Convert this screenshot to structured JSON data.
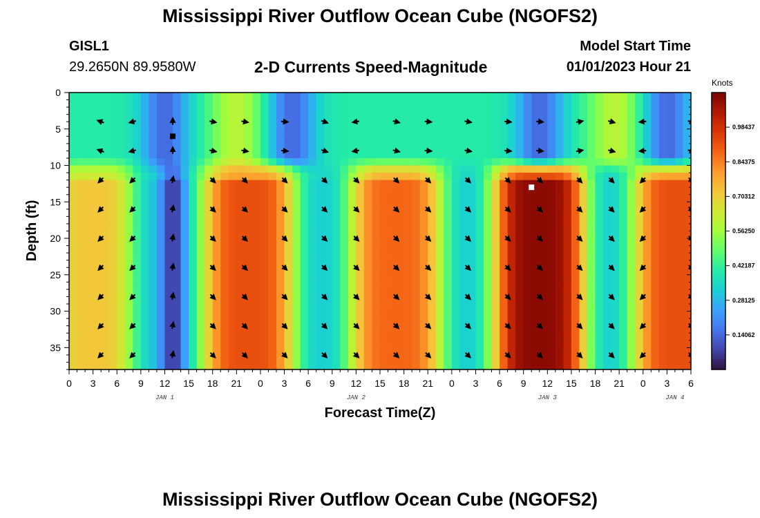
{
  "page": {
    "title": "Mississippi River Outflow Ocean Cube (NGOFS2)",
    "title_repeat": "Mississippi River Outflow Ocean Cube (NGOFS2)",
    "station_name": "GISL1",
    "station_coords": "29.2650N  89.9580W",
    "subtitle": "2-D Currents Speed-Magnitude",
    "model_start_label": "Model Start Time",
    "model_start_value": "01/01/2023 Hour 21"
  },
  "chart_data": {
    "type": "heatmap",
    "title": "2-D Currents Speed-Magnitude",
    "xlabel": "Forecast Time(Z)",
    "ylabel": "Depth (ft)",
    "units": "Knots",
    "x_hours_range": [
      0,
      78
    ],
    "x_ticks": [
      {
        "h": 0,
        "label": "0"
      },
      {
        "h": 3,
        "label": "3"
      },
      {
        "h": 6,
        "label": "6"
      },
      {
        "h": 9,
        "label": "9"
      },
      {
        "h": 12,
        "label": "12"
      },
      {
        "h": 15,
        "label": "15"
      },
      {
        "h": 18,
        "label": "18"
      },
      {
        "h": 21,
        "label": "21"
      },
      {
        "h": 24,
        "label": "0"
      },
      {
        "h": 27,
        "label": "3"
      },
      {
        "h": 30,
        "label": "6"
      },
      {
        "h": 33,
        "label": "9"
      },
      {
        "h": 36,
        "label": "12"
      },
      {
        "h": 39,
        "label": "15"
      },
      {
        "h": 42,
        "label": "18"
      },
      {
        "h": 45,
        "label": "21"
      },
      {
        "h": 48,
        "label": "0"
      },
      {
        "h": 51,
        "label": "3"
      },
      {
        "h": 54,
        "label": "6"
      },
      {
        "h": 57,
        "label": "9"
      },
      {
        "h": 60,
        "label": "12"
      },
      {
        "h": 63,
        "label": "15"
      },
      {
        "h": 66,
        "label": "18"
      },
      {
        "h": 69,
        "label": "21"
      },
      {
        "h": 72,
        "label": "0"
      },
      {
        "h": 75,
        "label": "3"
      },
      {
        "h": 78,
        "label": "6"
      }
    ],
    "date_labels": [
      {
        "h": 12,
        "label": "JAN 1"
      },
      {
        "h": 36,
        "label": "JAN 2"
      },
      {
        "h": 60,
        "label": "JAN 3"
      },
      {
        "h": 76,
        "label": "JAN 4"
      }
    ],
    "depth_range_ft": [
      0,
      38
    ],
    "y_ticks": [
      0,
      5,
      10,
      15,
      20,
      25,
      30,
      35
    ],
    "colorbar": {
      "range": [
        0,
        1.125
      ],
      "tick_values": [
        0.140625,
        0.28125,
        0.421875,
        0.5625,
        0.703125,
        0.84375,
        0.984375
      ],
      "tick_labels": [
        "0.14062",
        "0.28125",
        "0.42187",
        "0.56250",
        "0.70312",
        "0.84375",
        "0.98437"
      ],
      "colors": [
        "#30123b",
        "#4145ab",
        "#4675ed",
        "#39a2fc",
        "#1bcfd4",
        "#24eca6",
        "#61fc6c",
        "#a4fc3b",
        "#d1e834",
        "#f3c63a",
        "#fe9b2d",
        "#f36315",
        "#d93806",
        "#b11901",
        "#7a0403"
      ]
    },
    "surface_layer": {
      "depth_range_ft": [
        0,
        10
      ],
      "peak_times_h": [
        21,
        68.5
      ],
      "peak_speed": 0.6,
      "trough_times_h": [
        12,
        28,
        59,
        75
      ],
      "trough_speed": 0.14,
      "mid_speed": 0.4
    },
    "lower_layer": {
      "depth_range_ft": [
        11,
        38
      ],
      "peaks": [
        {
          "time_h": 3,
          "speed": 0.72
        },
        {
          "time_h": 22.5,
          "speed": 0.92
        },
        {
          "time_h": 41,
          "speed": 0.88
        },
        {
          "time_h": 59,
          "speed": 1.1
        },
        {
          "time_h": 76.5,
          "speed": 0.92
        }
      ],
      "trough_speed": 0.32,
      "near_zero_time_h": 13,
      "near_zero_speed": 0.06
    },
    "vector_times_h": [
      4,
      8,
      13,
      18,
      22,
      27,
      32,
      36,
      41,
      45,
      50,
      55,
      59,
      64,
      68,
      72,
      78
    ],
    "vector_depths_ft": [
      4,
      8,
      12,
      16,
      20,
      24,
      28,
      32,
      36
    ],
    "vector_directions_deg": {
      "surface_rows": [
        -160,
        165,
        -90,
        12,
        10,
        5,
        20,
        170,
        15,
        5,
        10,
        5,
        5,
        -10,
        15,
        175,
        15
      ],
      "lower_rows": [
        135,
        135,
        -80,
        45,
        45,
        45,
        45,
        45,
        45,
        45,
        45,
        45,
        45,
        45,
        45,
        135,
        45
      ]
    },
    "markers": [
      {
        "time_h": 13,
        "depth_ft": 6,
        "color": "#000000"
      },
      {
        "time_h": 58,
        "depth_ft": 13,
        "color": "#ffffff"
      }
    ]
  }
}
